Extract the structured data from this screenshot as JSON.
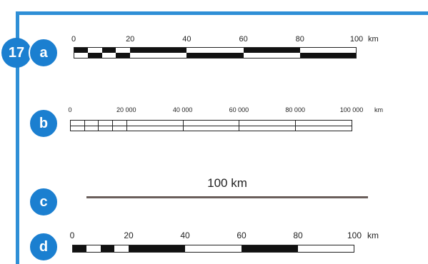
{
  "figure_number": "17",
  "scales": [
    {
      "letter": "a",
      "style": "alternating",
      "ticks": [
        "0",
        "20",
        "40",
        "60",
        "80",
        "100"
      ],
      "unit": "km"
    },
    {
      "letter": "b",
      "style": "outline",
      "ticks": [
        "0",
        "20 000",
        "40 000",
        "60 000",
        "80 000",
        "100 000"
      ],
      "unit": "km"
    },
    {
      "letter": "c",
      "style": "line",
      "label": "100 km"
    },
    {
      "letter": "d",
      "style": "alternating",
      "ticks": [
        "0",
        "20",
        "40",
        "60",
        "80",
        "100"
      ],
      "unit": "km"
    }
  ],
  "colors": {
    "border": "#2f8fd6",
    "badge": "#1b7fd0",
    "bar_dark": "#111111",
    "line": "#6a5e5b"
  }
}
